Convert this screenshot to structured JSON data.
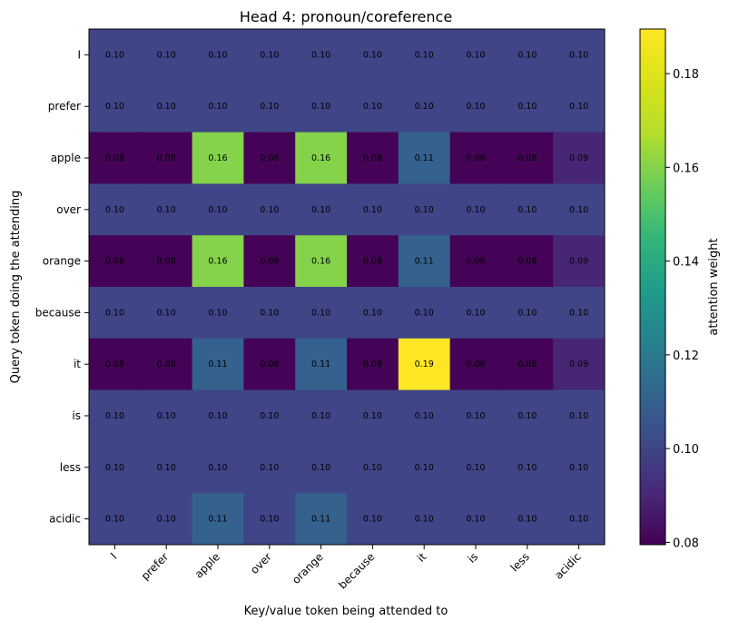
{
  "chart_data": {
    "type": "heatmap",
    "title": "Head 4: pronoun/coreference",
    "xlabel": "Key/value token being attended to",
    "ylabel": "Query token doing the attending",
    "x_tokens": [
      "I",
      "prefer",
      "apple",
      "over",
      "orange",
      "because",
      "it",
      "is",
      "less",
      "acidic"
    ],
    "y_tokens": [
      "I",
      "prefer",
      "apple",
      "over",
      "orange",
      "because",
      "it",
      "is",
      "less",
      "acidic"
    ],
    "values": [
      [
        0.1,
        0.1,
        0.1,
        0.1,
        0.1,
        0.1,
        0.1,
        0.1,
        0.1,
        0.1
      ],
      [
        0.1,
        0.1,
        0.1,
        0.1,
        0.1,
        0.1,
        0.1,
        0.1,
        0.1,
        0.1
      ],
      [
        0.08,
        0.08,
        0.16,
        0.08,
        0.16,
        0.08,
        0.11,
        0.08,
        0.08,
        0.09
      ],
      [
        0.1,
        0.1,
        0.1,
        0.1,
        0.1,
        0.1,
        0.1,
        0.1,
        0.1,
        0.1
      ],
      [
        0.08,
        0.08,
        0.16,
        0.08,
        0.16,
        0.08,
        0.11,
        0.08,
        0.08,
        0.09
      ],
      [
        0.1,
        0.1,
        0.1,
        0.1,
        0.1,
        0.1,
        0.1,
        0.1,
        0.1,
        0.1
      ],
      [
        0.08,
        0.08,
        0.11,
        0.08,
        0.11,
        0.08,
        0.19,
        0.08,
        0.08,
        0.09
      ],
      [
        0.1,
        0.1,
        0.1,
        0.1,
        0.1,
        0.1,
        0.1,
        0.1,
        0.1,
        0.1
      ],
      [
        0.1,
        0.1,
        0.1,
        0.1,
        0.1,
        0.1,
        0.1,
        0.1,
        0.1,
        0.1
      ],
      [
        0.1,
        0.1,
        0.11,
        0.1,
        0.11,
        0.1,
        0.1,
        0.1,
        0.1,
        0.1
      ]
    ],
    "value_range": [
      0.08,
      0.19
    ],
    "colormap": "viridis",
    "colorbar": {
      "label": "attention weight",
      "ticks": [
        "0.08",
        "0.10",
        "0.12",
        "0.14",
        "0.16",
        "0.18"
      ]
    },
    "annotations": "cell values shown to 2 decimals",
    "grid": false,
    "legend": "none"
  }
}
